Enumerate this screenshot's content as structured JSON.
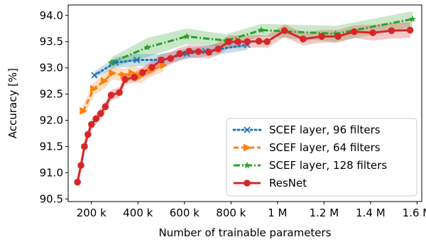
{
  "chart_data": {
    "type": "line",
    "xlabel": "Number of trainable parameters",
    "ylabel": "Accuracy [%]",
    "xlim": [
      100000,
      1620000
    ],
    "ylim": [
      90.45,
      94.2
    ],
    "x_ticks": [
      {
        "value": 200000,
        "label": "200 k"
      },
      {
        "value": 400000,
        "label": "400 k"
      },
      {
        "value": 600000,
        "label": "600 k"
      },
      {
        "value": 800000,
        "label": "800 k"
      },
      {
        "value": 1000000,
        "label": "1 M"
      },
      {
        "value": 1200000,
        "label": "1.2 M"
      },
      {
        "value": 1400000,
        "label": "1.4 M"
      },
      {
        "value": 1600000,
        "label": "1.6 M"
      }
    ],
    "y_ticks": [
      {
        "value": 90.5,
        "label": "90.5"
      },
      {
        "value": 91.0,
        "label": "91.0"
      },
      {
        "value": 91.5,
        "label": "91.5"
      },
      {
        "value": 92.0,
        "label": "92.0"
      },
      {
        "value": 92.5,
        "label": "92.5"
      },
      {
        "value": 93.0,
        "label": "93.0"
      },
      {
        "value": 93.5,
        "label": "93.5"
      },
      {
        "value": 94.0,
        "label": "94.0"
      }
    ],
    "grid": false,
    "legend_position": "lower-right",
    "series": [
      {
        "name": "SCEF layer, 96 filters",
        "color": "#1f77b4",
        "line_style": "dotted",
        "marker": "x",
        "x": [
          213000,
          303000,
          395000,
          500000,
          610000,
          690000,
          870000
        ],
        "y": [
          92.86,
          93.1,
          93.15,
          93.15,
          93.27,
          93.32,
          93.44
        ],
        "band": [
          0.07,
          0.1,
          0.12,
          0.11,
          0.1,
          0.1,
          0.1
        ]
      },
      {
        "name": "SCEF layer, 64 filters",
        "color": "#ff7f0e",
        "line_style": "dashed",
        "marker": "arrow",
        "x": [
          165000,
          210000,
          255000,
          290000,
          340000,
          375000,
          410000,
          455000,
          510000
        ],
        "y": [
          92.18,
          92.6,
          92.75,
          92.9,
          92.86,
          92.9,
          92.85,
          92.95,
          93.05
        ],
        "band": [
          0.12,
          0.12,
          0.15,
          0.12,
          0.12,
          0.15,
          0.15,
          0.12,
          0.12
        ]
      },
      {
        "name": "SCEF layer, 128 filters",
        "color": "#2ca02c",
        "line_style": "dashdot",
        "marker": "star",
        "x": [
          285000,
          440000,
          610000,
          780000,
          930000,
          1250000,
          1580000
        ],
        "y": [
          93.1,
          93.39,
          93.6,
          93.52,
          93.72,
          93.65,
          93.93
        ],
        "band": [
          0.1,
          0.18,
          0.15,
          0.12,
          0.12,
          0.15,
          0.15
        ]
      },
      {
        "name": "ResNet",
        "color": "#d62728",
        "line_style": "solid",
        "marker": "circle",
        "x": [
          140000,
          155000,
          170000,
          185000,
          200000,
          220000,
          240000,
          260000,
          285000,
          320000,
          345000,
          385000,
          420000,
          460000,
          500000,
          540000,
          580000,
          620000,
          660000,
          705000,
          745000,
          790000,
          830000,
          870000,
          920000,
          955000,
          1030000,
          1110000,
          1190000,
          1260000,
          1330000,
          1410000,
          1490000,
          1570000
        ],
        "y": [
          90.82,
          91.14,
          91.5,
          91.73,
          91.92,
          92.03,
          92.13,
          92.26,
          92.48,
          92.53,
          92.78,
          92.82,
          92.91,
          93.01,
          93.15,
          93.18,
          93.27,
          93.32,
          93.31,
          93.3,
          93.36,
          93.5,
          93.5,
          93.5,
          93.51,
          93.5,
          93.71,
          93.55,
          93.6,
          93.6,
          93.69,
          93.67,
          93.71,
          93.72
        ],
        "band": [
          0.12,
          0.12,
          0.12,
          0.1,
          0.1,
          0.1,
          0.1,
          0.1,
          0.1,
          0.1,
          0.1,
          0.1,
          0.1,
          0.12,
          0.12,
          0.12,
          0.12,
          0.12,
          0.12,
          0.12,
          0.12,
          0.12,
          0.12,
          0.12,
          0.12,
          0.12,
          0.12,
          0.12,
          0.12,
          0.12,
          0.12,
          0.15,
          0.15,
          0.15
        ]
      }
    ]
  }
}
